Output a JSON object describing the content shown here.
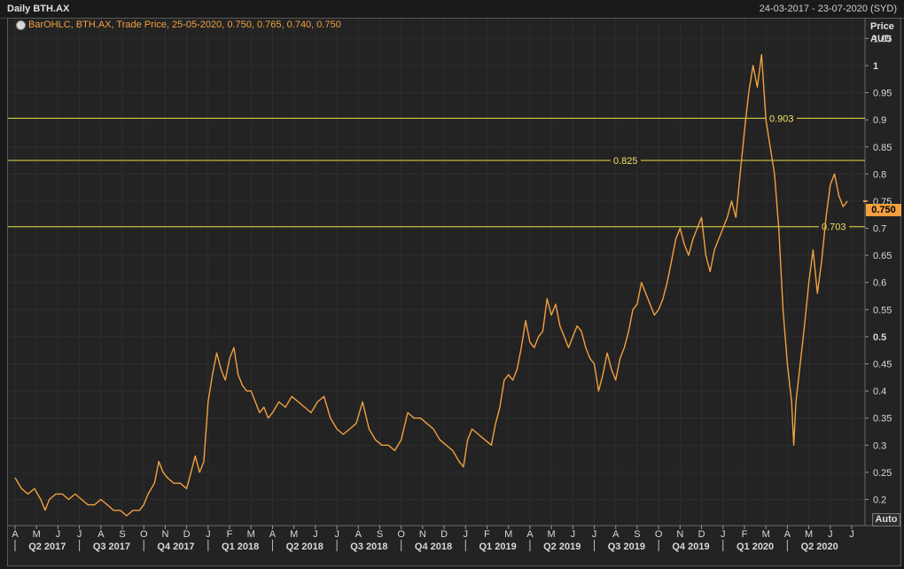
{
  "header": {
    "title": "Daily BTH.AX",
    "date_range": "24-03-2017 - 23-07-2020 (SYD)"
  },
  "legend": {
    "text": "BarOHLC, BTH.AX, Trade Price, 25-05-2020, 0.750, 0.765, 0.740, 0.750",
    "icon": "globe-icon"
  },
  "y_axis": {
    "title_line1": "Price",
    "title_line2": "AUD"
  },
  "last_price_label": "0.750",
  "auto_button_label": "Auto",
  "colors": {
    "background": "#232323",
    "series": "#f2a040",
    "reference_lines": "#f0e060",
    "grid": "#3a3a3a"
  },
  "chart_data": {
    "type": "line",
    "title": "Daily BTH.AX",
    "series_style": "BarOHLC",
    "ylabel": "Price AUD",
    "ylim": [
      0.16,
      1.08
    ],
    "yticks": [
      "0.2",
      "0.25",
      "0.3",
      "0.35",
      "0.4",
      "0.45",
      "0.5",
      "0.55",
      "0.6",
      "0.65",
      "0.7",
      "0.75",
      "0.8",
      "0.85",
      "0.9",
      "0.95",
      "1",
      "1.05"
    ],
    "ytick_values": [
      0.2,
      0.25,
      0.3,
      0.35,
      0.4,
      0.45,
      0.5,
      0.55,
      0.6,
      0.65,
      0.7,
      0.75,
      0.8,
      0.85,
      0.9,
      0.95,
      1,
      1.05
    ],
    "bold_yticks": [
      "0.5",
      "1"
    ],
    "month_ticks": [
      "A",
      "M",
      "J",
      "J",
      "A",
      "S",
      "O",
      "N",
      "D",
      "J",
      "F",
      "M",
      "A",
      "M",
      "J",
      "J",
      "A",
      "S",
      "O",
      "N",
      "D",
      "J",
      "F",
      "M",
      "A",
      "M",
      "J",
      "J",
      "A",
      "S",
      "O",
      "N",
      "D",
      "J",
      "F",
      "M",
      "A",
      "M",
      "J",
      "J"
    ],
    "quarter_labels": [
      "Q2 2017",
      "Q3 2017",
      "Q4 2017",
      "Q1 2018",
      "Q2 2018",
      "Q3 2018",
      "Q4 2018",
      "Q1 2019",
      "Q2 2019",
      "Q3 2019",
      "Q4 2019",
      "Q1 2020",
      "Q2 2020"
    ],
    "reference_lines": [
      {
        "value": 0.903,
        "label": "0.903"
      },
      {
        "value": 0.825,
        "label": "0.825"
      },
      {
        "value": 0.703,
        "label": "0.703"
      }
    ],
    "last_price": 0.75,
    "month_index_range": [
      0,
      39
    ],
    "points": [
      [
        0.0,
        0.24
      ],
      [
        0.3,
        0.22
      ],
      [
        0.6,
        0.21
      ],
      [
        0.9,
        0.22
      ],
      [
        1.2,
        0.2
      ],
      [
        1.4,
        0.18
      ],
      [
        1.6,
        0.2
      ],
      [
        1.9,
        0.21
      ],
      [
        2.2,
        0.21
      ],
      [
        2.5,
        0.2
      ],
      [
        2.8,
        0.21
      ],
      [
        3.1,
        0.2
      ],
      [
        3.4,
        0.19
      ],
      [
        3.7,
        0.19
      ],
      [
        4.0,
        0.2
      ],
      [
        4.3,
        0.19
      ],
      [
        4.6,
        0.18
      ],
      [
        4.9,
        0.18
      ],
      [
        5.2,
        0.17
      ],
      [
        5.5,
        0.18
      ],
      [
        5.8,
        0.18
      ],
      [
        6.0,
        0.19
      ],
      [
        6.2,
        0.21
      ],
      [
        6.5,
        0.23
      ],
      [
        6.7,
        0.27
      ],
      [
        6.9,
        0.25
      ],
      [
        7.1,
        0.24
      ],
      [
        7.4,
        0.23
      ],
      [
        7.7,
        0.23
      ],
      [
        8.0,
        0.22
      ],
      [
        8.2,
        0.25
      ],
      [
        8.4,
        0.28
      ],
      [
        8.6,
        0.25
      ],
      [
        8.8,
        0.27
      ],
      [
        9.0,
        0.38
      ],
      [
        9.2,
        0.43
      ],
      [
        9.4,
        0.47
      ],
      [
        9.6,
        0.44
      ],
      [
        9.8,
        0.42
      ],
      [
        10.0,
        0.46
      ],
      [
        10.2,
        0.48
      ],
      [
        10.4,
        0.43
      ],
      [
        10.6,
        0.41
      ],
      [
        10.8,
        0.4
      ],
      [
        11.0,
        0.4
      ],
      [
        11.2,
        0.38
      ],
      [
        11.4,
        0.36
      ],
      [
        11.6,
        0.37
      ],
      [
        11.8,
        0.35
      ],
      [
        12.0,
        0.36
      ],
      [
        12.3,
        0.38
      ],
      [
        12.6,
        0.37
      ],
      [
        12.9,
        0.39
      ],
      [
        13.2,
        0.38
      ],
      [
        13.5,
        0.37
      ],
      [
        13.8,
        0.36
      ],
      [
        14.1,
        0.38
      ],
      [
        14.4,
        0.39
      ],
      [
        14.7,
        0.35
      ],
      [
        15.0,
        0.33
      ],
      [
        15.3,
        0.32
      ],
      [
        15.6,
        0.33
      ],
      [
        15.9,
        0.34
      ],
      [
        16.2,
        0.38
      ],
      [
        16.5,
        0.33
      ],
      [
        16.8,
        0.31
      ],
      [
        17.1,
        0.3
      ],
      [
        17.4,
        0.3
      ],
      [
        17.7,
        0.29
      ],
      [
        18.0,
        0.31
      ],
      [
        18.3,
        0.36
      ],
      [
        18.6,
        0.35
      ],
      [
        18.9,
        0.35
      ],
      [
        19.2,
        0.34
      ],
      [
        19.5,
        0.33
      ],
      [
        19.8,
        0.31
      ],
      [
        20.1,
        0.3
      ],
      [
        20.4,
        0.29
      ],
      [
        20.7,
        0.27
      ],
      [
        20.9,
        0.26
      ],
      [
        21.1,
        0.31
      ],
      [
        21.3,
        0.33
      ],
      [
        21.6,
        0.32
      ],
      [
        21.9,
        0.31
      ],
      [
        22.2,
        0.3
      ],
      [
        22.4,
        0.34
      ],
      [
        22.6,
        0.37
      ],
      [
        22.8,
        0.42
      ],
      [
        23.0,
        0.43
      ],
      [
        23.2,
        0.42
      ],
      [
        23.4,
        0.44
      ],
      [
        23.6,
        0.48
      ],
      [
        23.8,
        0.53
      ],
      [
        24.0,
        0.49
      ],
      [
        24.2,
        0.48
      ],
      [
        24.4,
        0.5
      ],
      [
        24.6,
        0.51
      ],
      [
        24.8,
        0.57
      ],
      [
        25.0,
        0.54
      ],
      [
        25.2,
        0.56
      ],
      [
        25.4,
        0.52
      ],
      [
        25.6,
        0.5
      ],
      [
        25.8,
        0.48
      ],
      [
        26.0,
        0.5
      ],
      [
        26.2,
        0.52
      ],
      [
        26.4,
        0.51
      ],
      [
        26.6,
        0.48
      ],
      [
        26.8,
        0.46
      ],
      [
        27.0,
        0.45
      ],
      [
        27.2,
        0.4
      ],
      [
        27.4,
        0.43
      ],
      [
        27.6,
        0.47
      ],
      [
        27.8,
        0.44
      ],
      [
        28.0,
        0.42
      ],
      [
        28.2,
        0.46
      ],
      [
        28.4,
        0.48
      ],
      [
        28.6,
        0.51
      ],
      [
        28.8,
        0.55
      ],
      [
        29.0,
        0.56
      ],
      [
        29.2,
        0.6
      ],
      [
        29.4,
        0.58
      ],
      [
        29.6,
        0.56
      ],
      [
        29.8,
        0.54
      ],
      [
        30.0,
        0.55
      ],
      [
        30.2,
        0.57
      ],
      [
        30.4,
        0.6
      ],
      [
        30.6,
        0.64
      ],
      [
        30.8,
        0.68
      ],
      [
        31.0,
        0.7
      ],
      [
        31.2,
        0.67
      ],
      [
        31.4,
        0.65
      ],
      [
        31.6,
        0.68
      ],
      [
        31.8,
        0.7
      ],
      [
        32.0,
        0.72
      ],
      [
        32.2,
        0.65
      ],
      [
        32.4,
        0.62
      ],
      [
        32.6,
        0.66
      ],
      [
        32.8,
        0.68
      ],
      [
        33.0,
        0.7
      ],
      [
        33.2,
        0.72
      ],
      [
        33.4,
        0.75
      ],
      [
        33.6,
        0.72
      ],
      [
        33.8,
        0.8
      ],
      [
        34.0,
        0.88
      ],
      [
        34.2,
        0.95
      ],
      [
        34.4,
        1.0
      ],
      [
        34.6,
        0.96
      ],
      [
        34.8,
        1.02
      ],
      [
        35.0,
        0.9
      ],
      [
        35.2,
        0.85
      ],
      [
        35.4,
        0.8
      ],
      [
        35.6,
        0.7
      ],
      [
        35.8,
        0.55
      ],
      [
        36.0,
        0.45
      ],
      [
        36.2,
        0.38
      ],
      [
        36.3,
        0.3
      ],
      [
        36.4,
        0.38
      ],
      [
        36.6,
        0.45
      ],
      [
        36.8,
        0.52
      ],
      [
        37.0,
        0.6
      ],
      [
        37.2,
        0.66
      ],
      [
        37.4,
        0.58
      ],
      [
        37.6,
        0.64
      ],
      [
        37.8,
        0.72
      ],
      [
        38.0,
        0.78
      ],
      [
        38.2,
        0.8
      ],
      [
        38.4,
        0.76
      ],
      [
        38.6,
        0.74
      ],
      [
        38.8,
        0.75
      ]
    ]
  }
}
